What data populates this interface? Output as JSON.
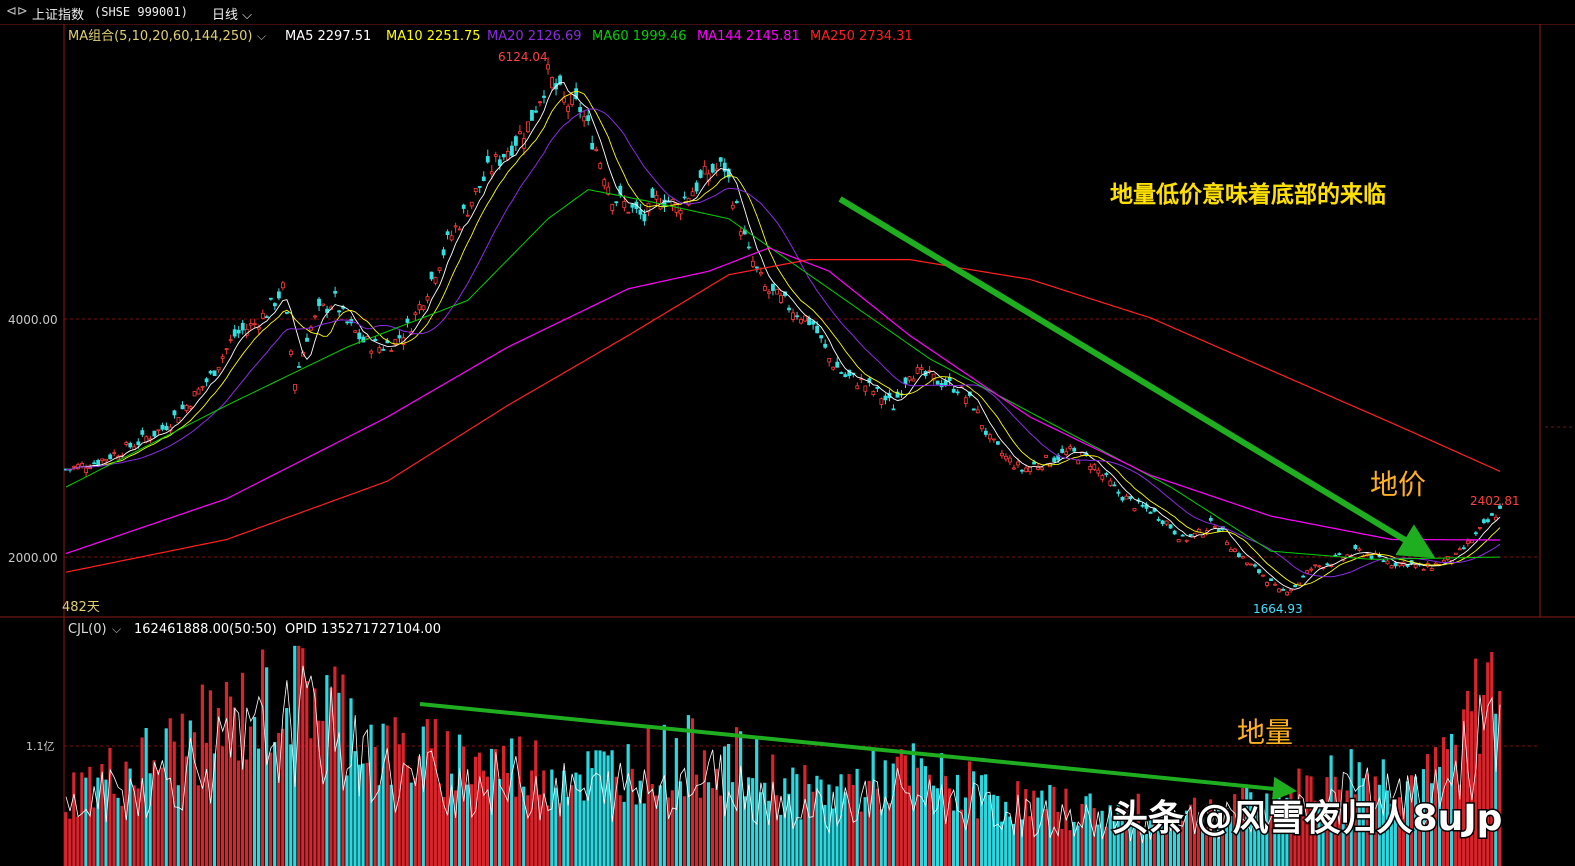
{
  "window": {
    "back_icon": "double-arrow-back-icon",
    "title": "上证指数",
    "code": "(SHSE 999001)",
    "period": "日线"
  },
  "ma_legend": {
    "label": "MA组合(5,10,20,60,144,250)",
    "items": [
      {
        "text": "MA5 2297.51",
        "color": "#ffffff"
      },
      {
        "text": "MA10 2251.75",
        "color": "#ffff00"
      },
      {
        "text": "MA20 2126.69",
        "color": "#8a2be2"
      },
      {
        "text": "MA60 1999.46",
        "color": "#00d000"
      },
      {
        "text": "MA144 2145.81",
        "color": "#ff00ff"
      },
      {
        "text": "MA250 2734.31",
        "color": "#ff2020"
      }
    ]
  },
  "volume_legend": {
    "label": "CJL(0)",
    "value": "162461888.00(50:50)",
    "opid": "OPID 135271727104.00"
  },
  "annotations": {
    "headline": "地量低价意味着底部的来临",
    "low_price": "地价",
    "low_volume": "地量",
    "high_label": "6124.04",
    "low_label": "1664.93",
    "last_label": "2402.81",
    "days": "482天",
    "watermark": "头条 @风雪夜归人8uJp"
  },
  "chart_data": {
    "type": "candlestick",
    "y_axis": {
      "ticks": [
        "4000.00",
        "2000.00"
      ],
      "range": [
        1600,
        6500
      ]
    },
    "volume_axis": {
      "ticks": [
        "1.1亿"
      ]
    },
    "price_path": [
      [
        0,
        2750
      ],
      [
        8,
        2820
      ],
      [
        16,
        2950
      ],
      [
        24,
        3100
      ],
      [
        30,
        3300
      ],
      [
        36,
        3550
      ],
      [
        42,
        3900
      ],
      [
        47,
        4000
      ],
      [
        50,
        4100
      ],
      [
        54,
        4300
      ],
      [
        57,
        3500
      ],
      [
        60,
        3900
      ],
      [
        63,
        4100
      ],
      [
        67,
        4200
      ],
      [
        70,
        4000
      ],
      [
        74,
        3850
      ],
      [
        78,
        3800
      ],
      [
        82,
        3850
      ],
      [
        86,
        4000
      ],
      [
        90,
        4300
      ],
      [
        95,
        4700
      ],
      [
        100,
        5000
      ],
      [
        105,
        5300
      ],
      [
        110,
        5500
      ],
      [
        115,
        5700
      ],
      [
        120,
        6124
      ],
      [
        124,
        5900
      ],
      [
        128,
        5850
      ],
      [
        132,
        5500
      ],
      [
        136,
        5100
      ],
      [
        140,
        5000
      ],
      [
        144,
        4900
      ],
      [
        148,
        5100
      ],
      [
        152,
        5000
      ],
      [
        156,
        5150
      ],
      [
        160,
        5300
      ],
      [
        164,
        5350
      ],
      [
        166,
        5100
      ],
      [
        170,
        4600
      ],
      [
        174,
        4300
      ],
      [
        178,
        4200
      ],
      [
        182,
        4100
      ],
      [
        186,
        4000
      ],
      [
        190,
        3700
      ],
      [
        194,
        3550
      ],
      [
        198,
        3500
      ],
      [
        202,
        3400
      ],
      [
        206,
        3300
      ],
      [
        210,
        3600
      ],
      [
        214,
        3550
      ],
      [
        218,
        3500
      ],
      [
        222,
        3450
      ],
      [
        226,
        3300
      ],
      [
        230,
        3000
      ],
      [
        234,
        2850
      ],
      [
        238,
        2750
      ],
      [
        242,
        2800
      ],
      [
        246,
        2850
      ],
      [
        250,
        2900
      ],
      [
        254,
        2850
      ],
      [
        258,
        2700
      ],
      [
        262,
        2550
      ],
      [
        266,
        2450
      ],
      [
        270,
        2400
      ],
      [
        274,
        2300
      ],
      [
        278,
        2150
      ],
      [
        282,
        2200
      ],
      [
        286,
        2300
      ],
      [
        290,
        2100
      ],
      [
        294,
        1950
      ],
      [
        298,
        1850
      ],
      [
        302,
        1700
      ],
      [
        306,
        1750
      ],
      [
        310,
        1900
      ],
      [
        314,
        1950
      ],
      [
        318,
        2000
      ],
      [
        322,
        2050
      ],
      [
        326,
        2000
      ],
      [
        330,
        1950
      ],
      [
        334,
        1950
      ],
      [
        338,
        1900
      ],
      [
        342,
        1950
      ],
      [
        346,
        2000
      ],
      [
        350,
        2150
      ],
      [
        354,
        2300
      ],
      [
        357,
        2402.81
      ]
    ],
    "ma_paths": {
      "MA144": [
        [
          0,
          2030
        ],
        [
          40,
          2500
        ],
        [
          80,
          3200
        ],
        [
          110,
          3800
        ],
        [
          140,
          4300
        ],
        [
          160,
          4450
        ],
        [
          175,
          4650
        ],
        [
          190,
          4450
        ],
        [
          210,
          3900
        ],
        [
          240,
          3200
        ],
        [
          270,
          2700
        ],
        [
          300,
          2350
        ],
        [
          330,
          2150
        ],
        [
          357,
          2145.81
        ]
      ],
      "MA250": [
        [
          0,
          1870
        ],
        [
          40,
          2150
        ],
        [
          80,
          2650
        ],
        [
          110,
          3300
        ],
        [
          140,
          3900
        ],
        [
          165,
          4420
        ],
        [
          185,
          4550
        ],
        [
          210,
          4550
        ],
        [
          240,
          4380
        ],
        [
          270,
          4050
        ],
        [
          300,
          3600
        ],
        [
          330,
          3150
        ],
        [
          357,
          2734.31
        ]
      ],
      "MA60": [
        [
          0,
          2600
        ],
        [
          40,
          3300
        ],
        [
          70,
          3800
        ],
        [
          100,
          4200
        ],
        [
          120,
          4900
        ],
        [
          130,
          5150
        ],
        [
          145,
          5050
        ],
        [
          165,
          4900
        ],
        [
          190,
          4300
        ],
        [
          215,
          3700
        ],
        [
          245,
          3150
        ],
        [
          275,
          2600
        ],
        [
          300,
          2050
        ],
        [
          325,
          1980
        ],
        [
          357,
          1999.46
        ]
      ]
    }
  }
}
